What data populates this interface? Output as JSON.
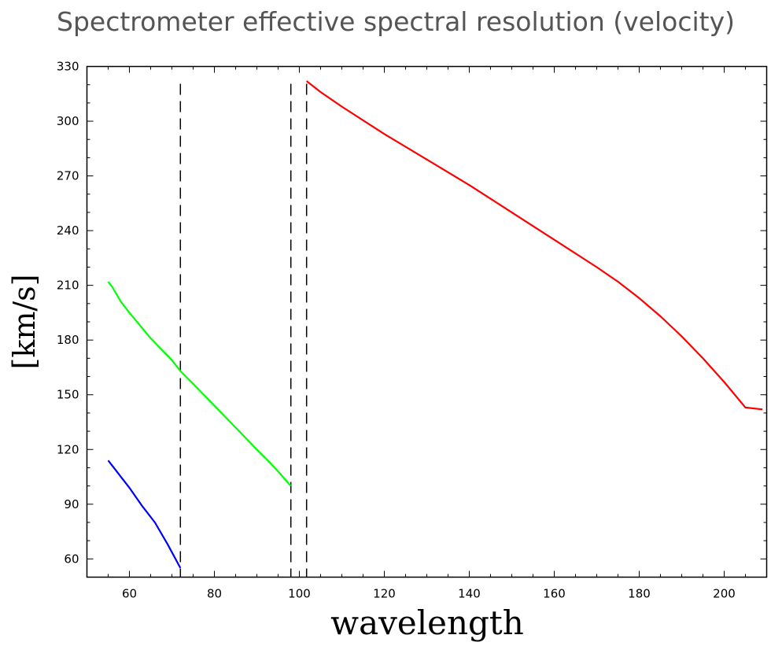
{
  "chart_data": {
    "type": "line",
    "title": "Spectrometer effective spectral resolution (velocity)",
    "xlabel": "wavelength",
    "ylabel": "[km/s]",
    "xlim": [
      50,
      210
    ],
    "ylim": [
      50,
      330
    ],
    "xticks": [
      60,
      80,
      100,
      120,
      140,
      160,
      180,
      200
    ],
    "yticks": [
      60,
      90,
      120,
      150,
      180,
      210,
      240,
      270,
      300,
      330
    ],
    "grid": false,
    "legend": "none",
    "vlines": [
      72,
      98,
      101.7
    ],
    "series": [
      {
        "color": "#0000ff",
        "x": [
          55,
          57,
          60,
          63,
          66,
          69,
          72
        ],
        "y": [
          114,
          108,
          99,
          89,
          80,
          68,
          55
        ]
      },
      {
        "color": "#00ff00",
        "x": [
          55,
          56,
          58,
          60,
          65,
          70,
          72,
          75,
          80,
          85,
          90,
          93,
          95,
          98
        ],
        "y": [
          212,
          209,
          201,
          195,
          181,
          169,
          163,
          156,
          144,
          132,
          120,
          113,
          108,
          100
        ]
      },
      {
        "color": "#ff0000",
        "x": [
          101.7,
          105,
          110,
          120,
          130,
          140,
          150,
          160,
          170,
          175,
          180,
          185,
          190,
          195,
          200,
          205,
          209
        ],
        "y": [
          322,
          316,
          308,
          293,
          279,
          265,
          250,
          235,
          220,
          212,
          203,
          193,
          182,
          170,
          157,
          143,
          142
        ]
      }
    ]
  }
}
